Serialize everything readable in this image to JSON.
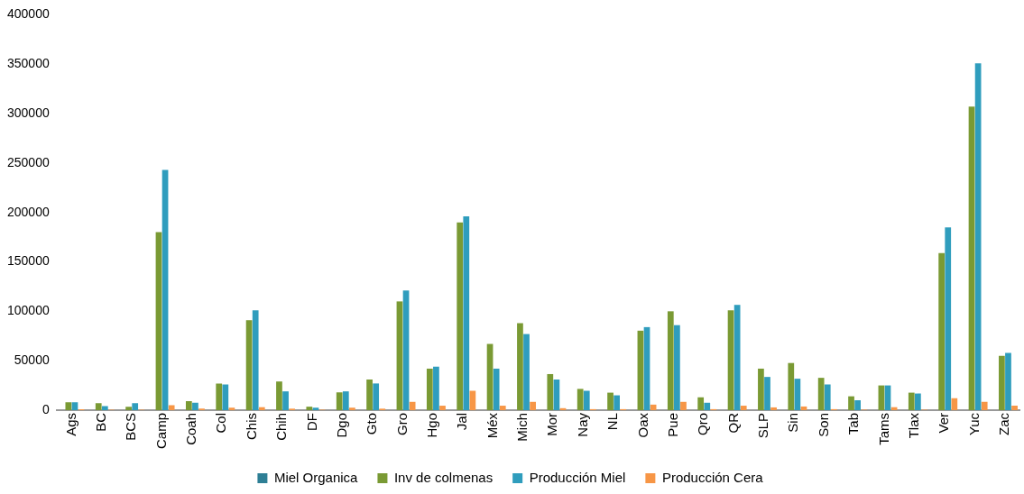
{
  "chart_data": {
    "type": "bar",
    "categories": [
      "Ags",
      "BC",
      "BCS",
      "Camp",
      "Coah",
      "Col",
      "Chis",
      "Chih",
      "DF",
      "Dgo",
      "Gto",
      "Gro",
      "Hgo",
      "Jal",
      "Méx",
      "Mich",
      "Mor",
      "Nay",
      "NL",
      "Oax",
      "Pue",
      "Qro",
      "QR",
      "SLP",
      "Sin",
      "Son",
      "Tab",
      "Tams",
      "Tlax",
      "Ver",
      "Yuc",
      "Zac"
    ],
    "series": [
      {
        "name": "Miel Organica",
        "color": "#2e7f95",
        "values": [
          0,
          0,
          0,
          0,
          0,
          0,
          0,
          0,
          0,
          0,
          0,
          0,
          0,
          0,
          0,
          0,
          0,
          0,
          0,
          0,
          0,
          0,
          0,
          0,
          0,
          0,
          0,
          0,
          0,
          0,
          0,
          0
        ]
      },
      {
        "name": "Inv de colmenas",
        "color": "#7a9a34",
        "values": [
          8000,
          7000,
          3500,
          180000,
          9000,
          27000,
          91000,
          29000,
          3500,
          18000,
          31000,
          110000,
          42000,
          190000,
          67000,
          88000,
          36500,
          21500,
          17700,
          80400,
          100000,
          13000,
          101000,
          42000,
          47700,
          32700,
          14000,
          25000,
          17700,
          159000,
          307000,
          55000
        ]
      },
      {
        "name": "Producción Miel",
        "color": "#2f9dbd",
        "values": [
          8000,
          4000,
          7000,
          243000,
          7500,
          26000,
          101000,
          19000,
          2500,
          19000,
          27000,
          121000,
          44000,
          196000,
          42000,
          77000,
          31000,
          19600,
          15000,
          84000,
          86000,
          7500,
          106500,
          33600,
          31800,
          26000,
          10000,
          25000,
          16800,
          185000,
          351000,
          58000
        ]
      },
      {
        "name": "Producción Cera",
        "color": "#f79646",
        "values": [
          1000,
          500,
          500,
          5000,
          1500,
          2500,
          3000,
          1500,
          500,
          2500,
          1500,
          8400,
          4500,
          19600,
          4500,
          8400,
          2000,
          1000,
          1000,
          5600,
          8400,
          1000,
          4500,
          2800,
          3700,
          1000,
          500,
          3000,
          500,
          12000,
          8400,
          4500
        ]
      }
    ],
    "ylim": [
      0,
      400000
    ],
    "yticks": [
      0,
      50000,
      100000,
      150000,
      200000,
      250000,
      300000,
      350000,
      400000
    ],
    "grid": false,
    "legend": "bottom"
  }
}
